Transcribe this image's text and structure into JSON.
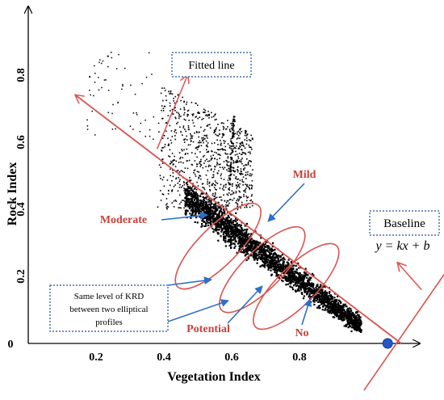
{
  "chart_data": {
    "type": "scatter",
    "title": "",
    "xlabel": "Vegetation Index",
    "ylabel": "Rock Index",
    "xlim": [
      0.0,
      1.1
    ],
    "ylim": [
      0.0,
      0.9
    ],
    "x_ticks": [
      "0.2",
      "0.4",
      "0.6",
      "0.8"
    ],
    "x_tick_values": [
      0.2,
      0.4,
      0.6,
      0.8
    ],
    "y_ticks": [
      "0",
      "0.2",
      "0.4",
      "0.6",
      "0.8"
    ],
    "y_tick_values": [
      0.0,
      0.2,
      0.4,
      0.6,
      0.8
    ],
    "grid": false,
    "legend": "none",
    "colors": {
      "points": "#000000",
      "fitted": "#d9534f",
      "arrow": "#2e6fc9",
      "axis": "#000000",
      "label_red": "#c9413a",
      "box_blue": "#1f4e9c",
      "baseline_point": "#2557c9"
    },
    "fitted_line": {
      "from": [
        0.14,
        0.74
      ],
      "to": [
        1.1,
        0.0
      ]
    },
    "fitted_arrow": {
      "from": [
        0.38,
        0.58
      ],
      "to": [
        0.47,
        0.8
      ]
    },
    "baseline": {
      "from": [
        0.99,
        -0.14
      ],
      "to": [
        1.25,
        0.24
      ]
    },
    "baseline_point": [
      1.06,
      0.0
    ],
    "ellipses": [
      {
        "cx": 0.56,
        "cy": 0.29
      },
      {
        "cx": 0.69,
        "cy": 0.22
      },
      {
        "cx": 0.79,
        "cy": 0.17
      }
    ],
    "scatter_regions": [
      {
        "pts": 2600,
        "x": [
          0.46,
          0.98
        ],
        "band": "main"
      },
      {
        "pts": 900,
        "x": [
          0.38,
          0.66
        ],
        "y": [
          0.4,
          0.78
        ],
        "band": "upper"
      }
    ],
    "annotations": {
      "fitted_line": "Fitted line",
      "baseline": "Baseline",
      "baseline_eq": "y = kx + b",
      "mild": "Mild",
      "moderate": "Moderate",
      "potential": "Potential",
      "no": "No",
      "same_level_1": "Same level of KRD",
      "same_level_2": "between two elliptical",
      "same_level_3": "profiles"
    }
  }
}
